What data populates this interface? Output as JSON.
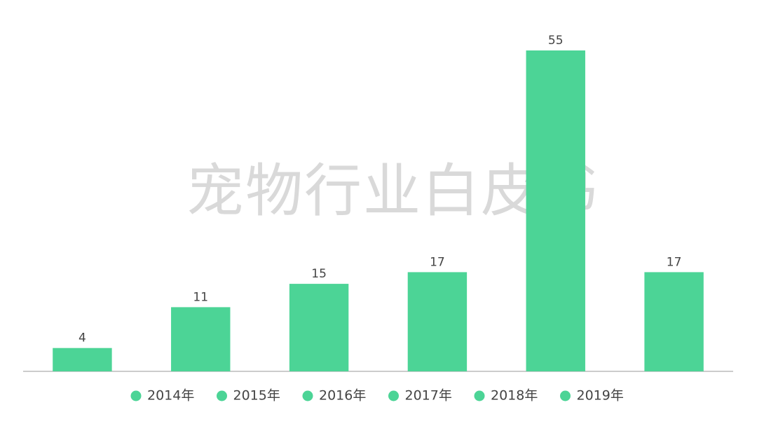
{
  "chart_data": {
    "type": "bar",
    "watermark": "宠物行业白皮书",
    "categories": [
      "2014年",
      "2015年",
      "2016年",
      "2017年",
      "2018年",
      "2019年"
    ],
    "values": [
      4,
      11,
      15,
      17,
      55,
      17
    ],
    "color": "#4cd496",
    "ylim": [
      0,
      55
    ]
  }
}
